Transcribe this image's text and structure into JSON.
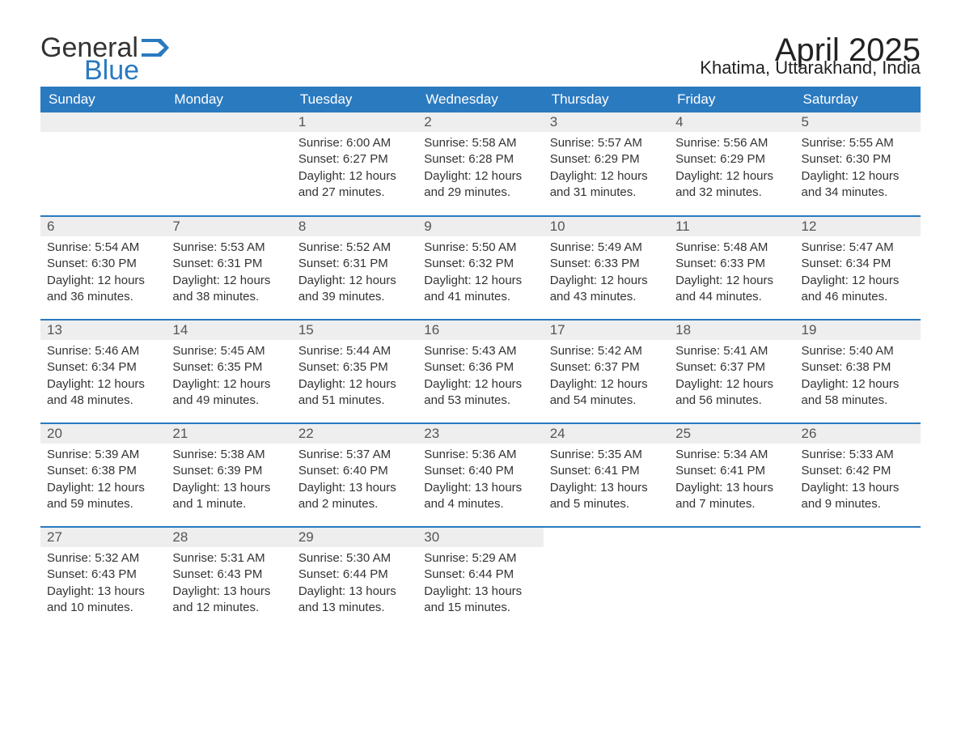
{
  "brand": {
    "part1": "General",
    "part2": "Blue"
  },
  "title": "April 2025",
  "subtitle": "Khatima, Uttarakhand, India",
  "colors": {
    "header_bg": "#2a7ac0",
    "header_fg": "#ffffff",
    "daynum_bg": "#eeeeee",
    "text": "#333333",
    "border": "#2a7ac0",
    "background": "#ffffff"
  },
  "typography": {
    "title_fontsize": 40,
    "subtitle_fontsize": 22,
    "header_fontsize": 17,
    "body_fontsize": 15,
    "logo_fontsize": 34
  },
  "layout": {
    "columns": 7,
    "rows": 5,
    "first_weekday_index": 2
  },
  "weekdays": [
    "Sunday",
    "Monday",
    "Tuesday",
    "Wednesday",
    "Thursday",
    "Friday",
    "Saturday"
  ],
  "days": [
    {
      "n": 1,
      "sunrise": "6:00 AM",
      "sunset": "6:27 PM",
      "daylight": "12 hours and 27 minutes."
    },
    {
      "n": 2,
      "sunrise": "5:58 AM",
      "sunset": "6:28 PM",
      "daylight": "12 hours and 29 minutes."
    },
    {
      "n": 3,
      "sunrise": "5:57 AM",
      "sunset": "6:29 PM",
      "daylight": "12 hours and 31 minutes."
    },
    {
      "n": 4,
      "sunrise": "5:56 AM",
      "sunset": "6:29 PM",
      "daylight": "12 hours and 32 minutes."
    },
    {
      "n": 5,
      "sunrise": "5:55 AM",
      "sunset": "6:30 PM",
      "daylight": "12 hours and 34 minutes."
    },
    {
      "n": 6,
      "sunrise": "5:54 AM",
      "sunset": "6:30 PM",
      "daylight": "12 hours and 36 minutes."
    },
    {
      "n": 7,
      "sunrise": "5:53 AM",
      "sunset": "6:31 PM",
      "daylight": "12 hours and 38 minutes."
    },
    {
      "n": 8,
      "sunrise": "5:52 AM",
      "sunset": "6:31 PM",
      "daylight": "12 hours and 39 minutes."
    },
    {
      "n": 9,
      "sunrise": "5:50 AM",
      "sunset": "6:32 PM",
      "daylight": "12 hours and 41 minutes."
    },
    {
      "n": 10,
      "sunrise": "5:49 AM",
      "sunset": "6:33 PM",
      "daylight": "12 hours and 43 minutes."
    },
    {
      "n": 11,
      "sunrise": "5:48 AM",
      "sunset": "6:33 PM",
      "daylight": "12 hours and 44 minutes."
    },
    {
      "n": 12,
      "sunrise": "5:47 AM",
      "sunset": "6:34 PM",
      "daylight": "12 hours and 46 minutes."
    },
    {
      "n": 13,
      "sunrise": "5:46 AM",
      "sunset": "6:34 PM",
      "daylight": "12 hours and 48 minutes."
    },
    {
      "n": 14,
      "sunrise": "5:45 AM",
      "sunset": "6:35 PM",
      "daylight": "12 hours and 49 minutes."
    },
    {
      "n": 15,
      "sunrise": "5:44 AM",
      "sunset": "6:35 PM",
      "daylight": "12 hours and 51 minutes."
    },
    {
      "n": 16,
      "sunrise": "5:43 AM",
      "sunset": "6:36 PM",
      "daylight": "12 hours and 53 minutes."
    },
    {
      "n": 17,
      "sunrise": "5:42 AM",
      "sunset": "6:37 PM",
      "daylight": "12 hours and 54 minutes."
    },
    {
      "n": 18,
      "sunrise": "5:41 AM",
      "sunset": "6:37 PM",
      "daylight": "12 hours and 56 minutes."
    },
    {
      "n": 19,
      "sunrise": "5:40 AM",
      "sunset": "6:38 PM",
      "daylight": "12 hours and 58 minutes."
    },
    {
      "n": 20,
      "sunrise": "5:39 AM",
      "sunset": "6:38 PM",
      "daylight": "12 hours and 59 minutes."
    },
    {
      "n": 21,
      "sunrise": "5:38 AM",
      "sunset": "6:39 PM",
      "daylight": "13 hours and 1 minute."
    },
    {
      "n": 22,
      "sunrise": "5:37 AM",
      "sunset": "6:40 PM",
      "daylight": "13 hours and 2 minutes."
    },
    {
      "n": 23,
      "sunrise": "5:36 AM",
      "sunset": "6:40 PM",
      "daylight": "13 hours and 4 minutes."
    },
    {
      "n": 24,
      "sunrise": "5:35 AM",
      "sunset": "6:41 PM",
      "daylight": "13 hours and 5 minutes."
    },
    {
      "n": 25,
      "sunrise": "5:34 AM",
      "sunset": "6:41 PM",
      "daylight": "13 hours and 7 minutes."
    },
    {
      "n": 26,
      "sunrise": "5:33 AM",
      "sunset": "6:42 PM",
      "daylight": "13 hours and 9 minutes."
    },
    {
      "n": 27,
      "sunrise": "5:32 AM",
      "sunset": "6:43 PM",
      "daylight": "13 hours and 10 minutes."
    },
    {
      "n": 28,
      "sunrise": "5:31 AM",
      "sunset": "6:43 PM",
      "daylight": "13 hours and 12 minutes."
    },
    {
      "n": 29,
      "sunrise": "5:30 AM",
      "sunset": "6:44 PM",
      "daylight": "13 hours and 13 minutes."
    },
    {
      "n": 30,
      "sunrise": "5:29 AM",
      "sunset": "6:44 PM",
      "daylight": "13 hours and 15 minutes."
    }
  ],
  "labels": {
    "sunrise": "Sunrise: ",
    "sunset": "Sunset: ",
    "daylight": "Daylight: "
  }
}
